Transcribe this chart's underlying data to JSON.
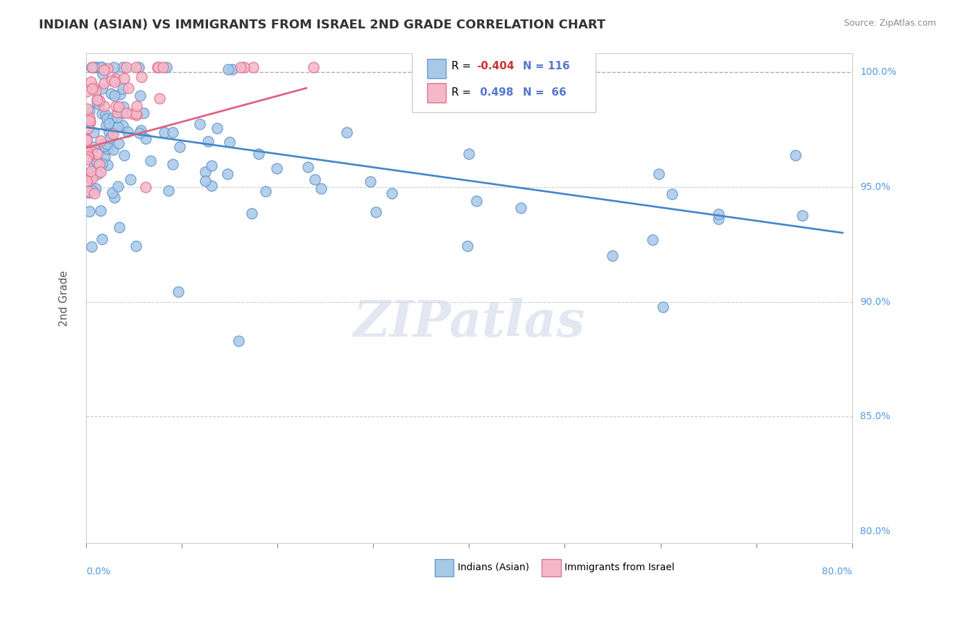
{
  "title": "INDIAN (ASIAN) VS IMMIGRANTS FROM ISRAEL 2ND GRADE CORRELATION CHART",
  "source_text": "Source: ZipAtlas.com",
  "ylabel": "2nd Grade",
  "ylabel_right_labels": [
    "100.0%",
    "95.0%",
    "90.0%",
    "85.0%",
    "80.0%"
  ],
  "ylabel_right_values": [
    1.0,
    0.95,
    0.9,
    0.85,
    0.8
  ],
  "xmin": 0.0,
  "xmax": 0.8,
  "ymin": 0.795,
  "ymax": 1.008,
  "blue_R": -0.404,
  "blue_N": 116,
  "pink_R": 0.498,
  "pink_N": 66,
  "blue_color": "#a8c8e8",
  "blue_edge_color": "#6699cc",
  "pink_color": "#f5b8c8",
  "pink_edge_color": "#e07090",
  "blue_trend_color": "#4488cc",
  "pink_trend_color": "#e06080",
  "watermark_text": "ZIPatlas",
  "legend_blue_label": "Indians (Asian)",
  "legend_pink_label": "Immigrants from Israel",
  "blue_trend_x": [
    0.0,
    0.79
  ],
  "blue_trend_y": [
    0.976,
    0.93
  ],
  "pink_trend_x": [
    0.0,
    0.23
  ],
  "pink_trend_y": [
    0.967,
    0.993
  ]
}
